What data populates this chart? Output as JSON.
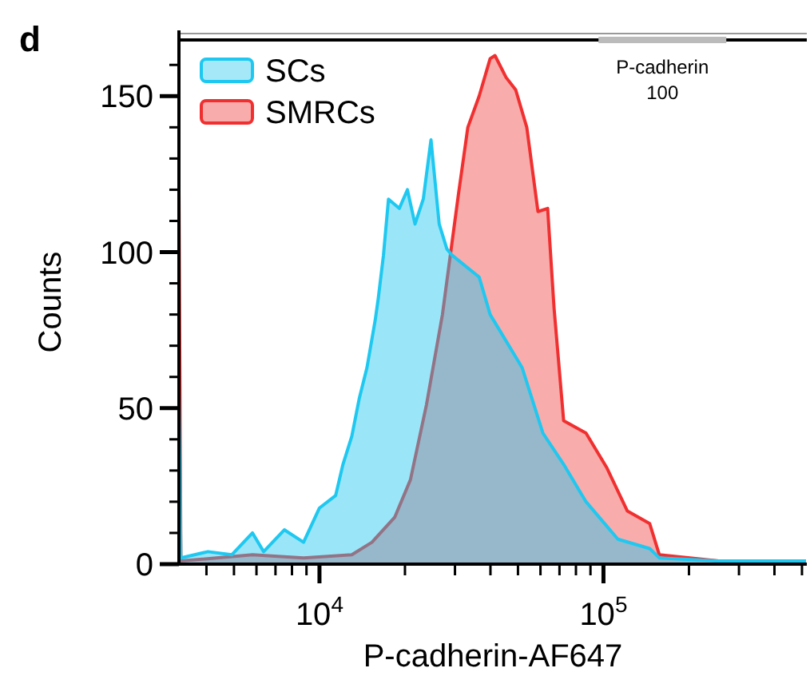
{
  "chart_data": {
    "type": "area",
    "title": "d",
    "xlabel": "P-cadherin-AF647",
    "ylabel": "Counts",
    "log": "x",
    "xlim": [
      3200,
      520000
    ],
    "xticks": [
      {
        "value": 4000,
        "label": null
      },
      {
        "value": 5000,
        "label": null
      },
      {
        "value": 6000,
        "label": null
      },
      {
        "value": 7000,
        "label": null
      },
      {
        "value": 8000,
        "label": null
      },
      {
        "value": 9000,
        "label": null
      },
      {
        "value": 10000,
        "label": "10$^{4}$"
      },
      {
        "value": 20000,
        "label": null
      },
      {
        "value": 30000,
        "label": null
      },
      {
        "value": 40000,
        "label": null
      },
      {
        "value": 50000,
        "label": null
      },
      {
        "value": 60000,
        "label": null
      },
      {
        "value": 70000,
        "label": null
      },
      {
        "value": 80000,
        "label": null
      },
      {
        "value": 90000,
        "label": null
      },
      {
        "value": 100000,
        "label": "10$^{5}$"
      },
      {
        "value": 200000,
        "label": null
      },
      {
        "value": 300000,
        "label": null
      },
      {
        "value": 400000,
        "label": null
      },
      {
        "value": 500000,
        "label": null
      }
    ],
    "ylim": [
      0,
      168
    ],
    "yticks": [
      0,
      {
        "value": 10,
        "label": null
      },
      {
        "value": 20,
        "label": null
      },
      {
        "value": 30,
        "label": null
      },
      {
        "value": 40,
        "label": null
      },
      50,
      {
        "value": 60,
        "label": null
      },
      {
        "value": 70,
        "label": null
      },
      {
        "value": 80,
        "label": null
      },
      {
        "value": 90,
        "label": null
      },
      100,
      {
        "value": 110,
        "label": null
      },
      {
        "value": 120,
        "label": null
      },
      {
        "value": 130,
        "label": null
      },
      {
        "value": 140,
        "label": null
      },
      150,
      {
        "value": 160,
        "label": null
      }
    ],
    "grid": false,
    "legend": "top left",
    "annotations": [
      "P-cadherin 100"
    ],
    "series": [
      {
        "name": "SMRCs",
        "color": "#f03030",
        "x": [
          3200,
          3250,
          5810,
          8790,
          13000,
          15300,
          18400,
          20900,
          23800,
          27100,
          30800,
          33300,
          36500,
          39900,
          41500,
          45400,
          49100,
          53700,
          58800,
          63600,
          67000,
          72400,
          86800,
          102600,
          121400,
          145500,
          157300,
          254000,
          516000
        ],
        "values": [
          120,
          1,
          3,
          2,
          3,
          7,
          15,
          27,
          51,
          80,
          118,
          140,
          150,
          162,
          163,
          156,
          152,
          140,
          113,
          114,
          82,
          46,
          42,
          31,
          17,
          13,
          3,
          1,
          1
        ]
      },
      {
        "name": "SCs",
        "color": "#1ec8f0",
        "x": [
          3200,
          3250,
          4050,
          4910,
          5810,
          6360,
          7520,
          8790,
          10000,
          11400,
          12100,
          13000,
          13800,
          14700,
          15700,
          16100,
          16800,
          17500,
          19100,
          20400,
          21700,
          23200,
          24700,
          26400,
          28100,
          29300,
          36500,
          39900,
          51700,
          61200,
          72400,
          86800,
          112400,
          145500,
          157300,
          254000,
          516000
        ],
        "values": [
          56,
          2,
          4,
          3,
          10,
          4,
          11,
          7,
          18,
          22,
          32,
          41,
          53,
          63,
          78,
          85,
          99,
          117,
          114,
          120,
          109,
          117,
          136,
          109,
          101,
          99,
          92,
          80,
          63,
          42,
          32,
          20,
          8,
          5,
          2,
          1,
          1
        ]
      }
    ]
  }
}
